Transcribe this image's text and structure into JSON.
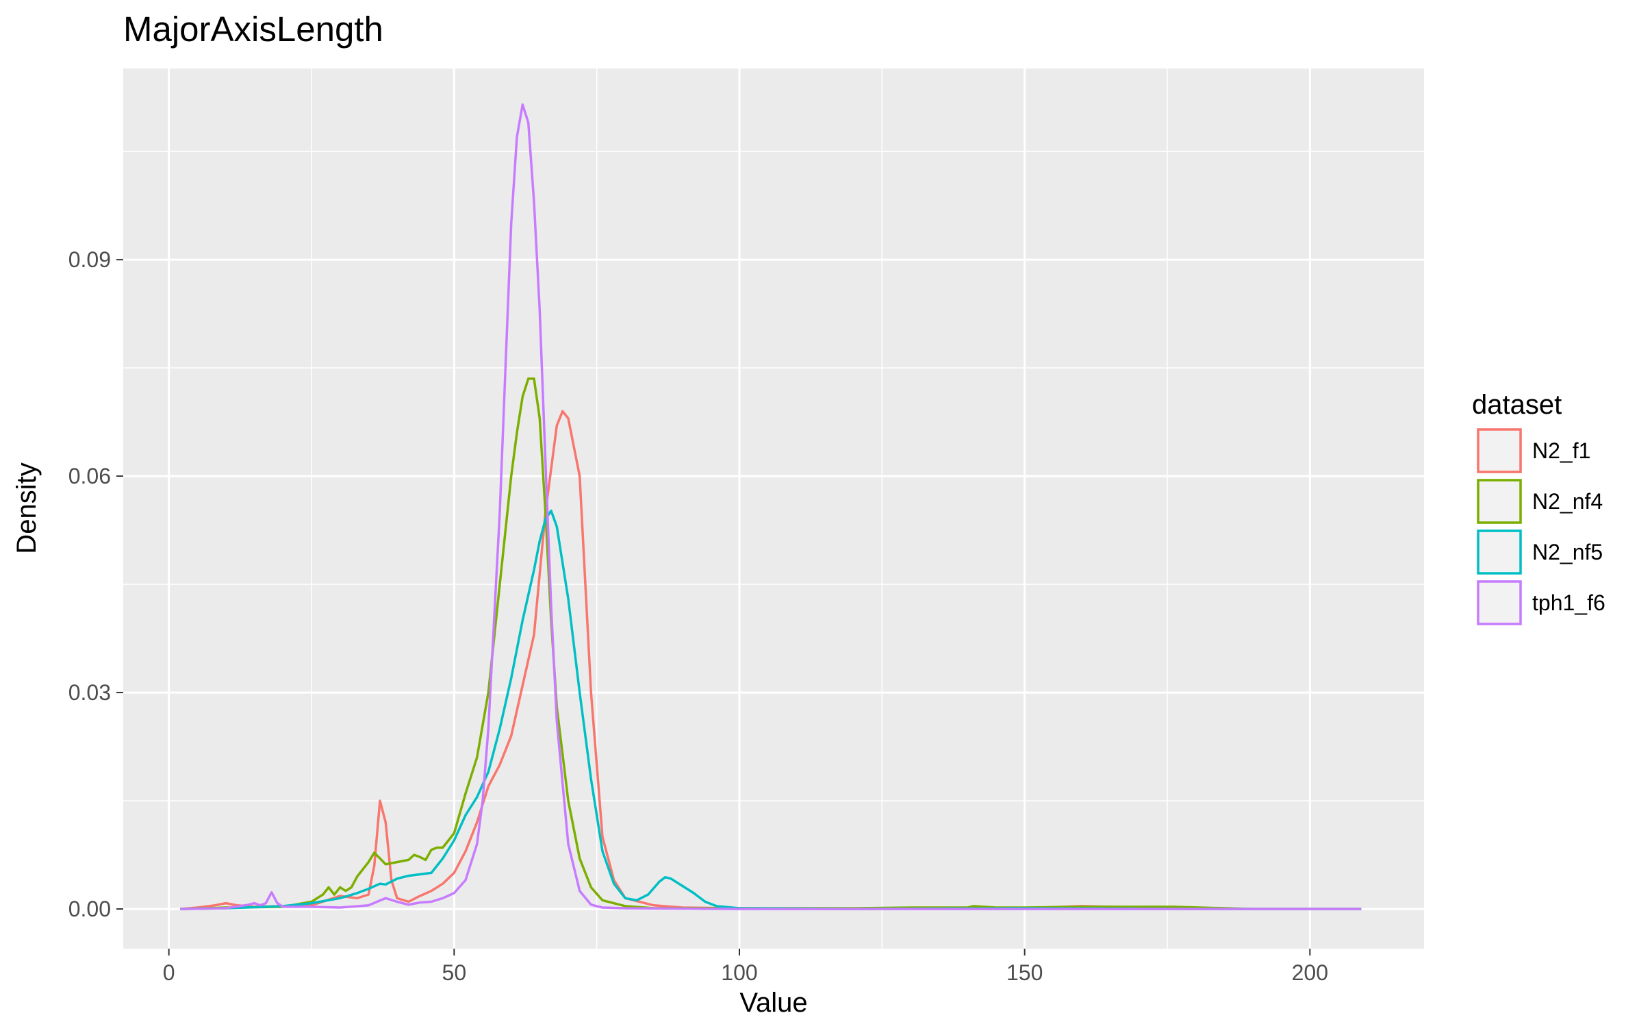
{
  "chart_data": {
    "type": "line",
    "title": "MajorAxisLength",
    "xlabel": "Value",
    "ylabel": "Density",
    "xlim": [
      -8,
      220
    ],
    "ylim": [
      -0.0055,
      0.1165
    ],
    "x_ticks": [
      0,
      50,
      100,
      150,
      200
    ],
    "x_tick_labels": [
      "0",
      "50",
      "100",
      "150",
      "200"
    ],
    "y_ticks": [
      0.0,
      0.03,
      0.06,
      0.09
    ],
    "y_tick_labels": [
      "0.00",
      "0.03",
      "0.06",
      "0.09"
    ],
    "x_minor": [
      25,
      75,
      125,
      175
    ],
    "y_minor": [
      0.015,
      0.045,
      0.075,
      0.105
    ],
    "grid": true,
    "legend": {
      "title": "dataset",
      "position": "right"
    },
    "series": [
      {
        "name": "N2_f1",
        "color": "#F8766D",
        "x": [
          2,
          5,
          8,
          10,
          12,
          15,
          20,
          25,
          30,
          33,
          35,
          36,
          37,
          38,
          39,
          40,
          42,
          44,
          46,
          48,
          50,
          52,
          54,
          56,
          58,
          60,
          62,
          64,
          66,
          68,
          69,
          70,
          72,
          74,
          76,
          78,
          80,
          85,
          90,
          100,
          120,
          140,
          150,
          160,
          165,
          170,
          180,
          190,
          200,
          209
        ],
        "y": [
          0.0,
          0.0002,
          0.0005,
          0.0008,
          0.0005,
          0.0003,
          0.0004,
          0.0005,
          0.0018,
          0.0015,
          0.002,
          0.006,
          0.015,
          0.012,
          0.004,
          0.0015,
          0.001,
          0.0018,
          0.0025,
          0.0035,
          0.005,
          0.008,
          0.012,
          0.017,
          0.02,
          0.024,
          0.031,
          0.038,
          0.055,
          0.067,
          0.069,
          0.068,
          0.06,
          0.03,
          0.01,
          0.004,
          0.0015,
          0.0005,
          0.0002,
          0.0001,
          0.0,
          0.0001,
          0.0001,
          0.0004,
          0.0003,
          0.0001,
          0.0001,
          0.0,
          0.0,
          0.0
        ]
      },
      {
        "name": "N2_nf4",
        "color": "#7CAE00",
        "x": [
          2,
          10,
          20,
          25,
          27,
          28,
          29,
          30,
          31,
          32,
          33,
          35,
          36,
          37,
          38,
          40,
          42,
          43,
          44,
          45,
          46,
          47,
          48,
          50,
          52,
          54,
          56,
          58,
          60,
          61,
          62,
          63,
          64,
          65,
          66,
          67,
          68,
          70,
          72,
          74,
          76,
          80,
          85,
          100,
          120,
          130,
          140,
          141,
          145,
          150,
          160,
          176,
          190,
          209
        ],
        "y": [
          0.0,
          0.0002,
          0.0003,
          0.001,
          0.002,
          0.003,
          0.002,
          0.003,
          0.0025,
          0.003,
          0.0045,
          0.0065,
          0.0078,
          0.007,
          0.0062,
          0.0065,
          0.0068,
          0.0075,
          0.0072,
          0.0068,
          0.0082,
          0.0085,
          0.0085,
          0.0105,
          0.016,
          0.021,
          0.03,
          0.045,
          0.06,
          0.066,
          0.071,
          0.0735,
          0.0735,
          0.068,
          0.055,
          0.04,
          0.028,
          0.015,
          0.007,
          0.003,
          0.0012,
          0.0004,
          0.0001,
          0.0001,
          0.0001,
          0.0002,
          0.0002,
          0.0004,
          0.0002,
          0.0002,
          0.0003,
          0.0003,
          0.0,
          0.0
        ]
      },
      {
        "name": "N2_nf5",
        "color": "#00BFC4",
        "x": [
          2,
          10,
          20,
          25,
          30,
          33,
          35,
          37,
          38,
          40,
          42,
          44,
          46,
          48,
          50,
          52,
          54,
          56,
          58,
          60,
          62,
          64,
          65,
          66,
          67,
          68,
          70,
          72,
          74,
          76,
          78,
          80,
          82,
          84,
          86,
          87,
          88,
          90,
          92,
          94,
          96,
          100,
          120,
          150,
          180,
          209
        ],
        "y": [
          0.0,
          0.0001,
          0.0004,
          0.0008,
          0.0015,
          0.0022,
          0.0028,
          0.0035,
          0.0034,
          0.0042,
          0.0046,
          0.0048,
          0.005,
          0.007,
          0.0095,
          0.013,
          0.0155,
          0.019,
          0.025,
          0.032,
          0.04,
          0.047,
          0.051,
          0.054,
          0.0552,
          0.053,
          0.043,
          0.03,
          0.018,
          0.008,
          0.0035,
          0.0015,
          0.0012,
          0.002,
          0.0038,
          0.0044,
          0.0042,
          0.0032,
          0.0022,
          0.001,
          0.0004,
          0.0001,
          0.0,
          0.0001,
          0.0,
          0.0
        ]
      },
      {
        "name": "tph1_f6",
        "color": "#C77CFF",
        "x": [
          2,
          10,
          14,
          15,
          16,
          17,
          18,
          19,
          20,
          25,
          30,
          35,
          38,
          40,
          42,
          44,
          46,
          48,
          50,
          52,
          54,
          55,
          56,
          58,
          59,
          60,
          61,
          62,
          63,
          64,
          65,
          66,
          67,
          68,
          70,
          72,
          74,
          76,
          80,
          100,
          150,
          209
        ],
        "y": [
          0.0,
          0.0001,
          0.0006,
          0.0008,
          0.0005,
          0.0008,
          0.0023,
          0.0008,
          0.0003,
          0.0003,
          0.0002,
          0.0005,
          0.0015,
          0.001,
          0.0006,
          0.0009,
          0.001,
          0.0015,
          0.0022,
          0.004,
          0.009,
          0.015,
          0.025,
          0.055,
          0.075,
          0.095,
          0.107,
          0.1115,
          0.109,
          0.098,
          0.083,
          0.062,
          0.042,
          0.026,
          0.009,
          0.0025,
          0.0006,
          0.0002,
          0.0001,
          0.0,
          0.0,
          0.0
        ]
      }
    ]
  }
}
